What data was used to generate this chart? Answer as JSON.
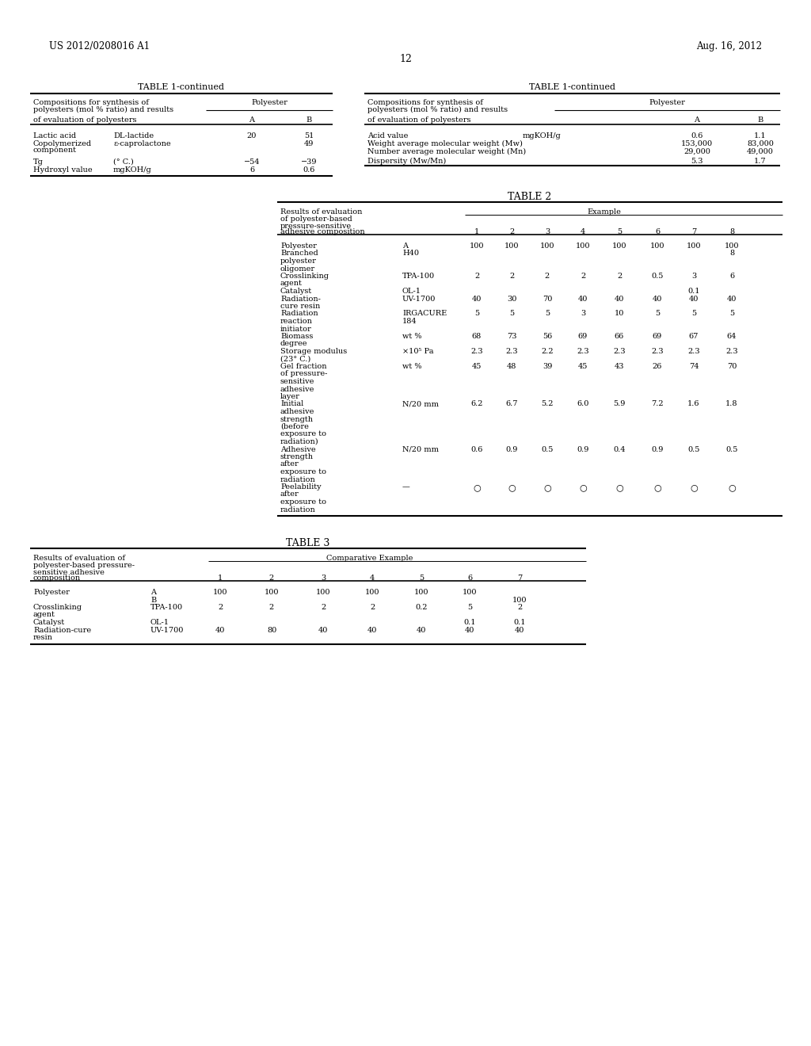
{
  "bg_color": "#ffffff",
  "header_left": "US 2012/0208016 A1",
  "header_right": "Aug. 16, 2012",
  "page_number": "12",
  "table1_left_title": "TABLE 1-continued",
  "table1_left_header1": "Compositions for synthesis of",
  "table1_left_header2": "polyesters (mol % ratio) and results",
  "table1_left_header3": "Polyester",
  "table1_left_subheader": "of evaluation of polyesters",
  "table1_left_rows": [
    [
      "Lactic acid",
      "DL-lactide",
      "20",
      "51"
    ],
    [
      "Copolymerized",
      "ε-caprolactone",
      "",
      "49"
    ],
    [
      "component",
      "",
      "",
      ""
    ],
    [
      "Tg",
      "(° C.)",
      "−54",
      "−39"
    ],
    [
      "Hydroxyl value",
      "mgKOH/g",
      "6",
      "0.6"
    ]
  ],
  "table1_right_title": "TABLE 1-continued",
  "table1_right_header1": "Compositions for synthesis of",
  "table1_right_header2": "polyesters (mol % ratio) and results",
  "table1_right_header3": "Polyester",
  "table1_right_subheader": "of evaluation of polyesters",
  "table1_right_rows": [
    [
      "Acid value",
      "mgKOH/g",
      "0.6",
      "1.1"
    ],
    [
      "Weight average molecular weight (Mw)",
      "",
      "153,000",
      "83,000"
    ],
    [
      "Number average molecular weight (Mn)",
      "",
      "29,000",
      "49,000"
    ],
    [
      "Dispersity (Mw/Mn)",
      "",
      "5.3",
      "1.7"
    ]
  ],
  "table2_title": "TABLE 2",
  "table2_header1": "Results of evaluation",
  "table2_header2": "of polyester-based",
  "table2_header3": "pressure-sensitive",
  "table2_example_header": "Example",
  "table2_rows": [
    {
      "label": "Polyester",
      "sub": "A",
      "values": [
        "100",
        "100",
        "100",
        "100",
        "100",
        "100",
        "100",
        "100"
      ],
      "sub2": ""
    },
    {
      "label": "Branched",
      "sub": "H40",
      "values": [
        "",
        "",
        "",
        "",
        "",
        "",
        "",
        "8"
      ],
      "sub2": ""
    },
    {
      "label": "polyester",
      "sub": "",
      "values": [
        "",
        "",
        "",
        "",
        "",
        "",
        "",
        ""
      ],
      "sub2": ""
    },
    {
      "label": "oligomer",
      "sub": "",
      "values": [
        "",
        "",
        "",
        "",
        "",
        "",
        "",
        ""
      ],
      "sub2": ""
    },
    {
      "label": "Crosslinking",
      "sub": "TPA-100",
      "values": [
        "2",
        "2",
        "2",
        "2",
        "2",
        "0.5",
        "3",
        "6"
      ],
      "sub2": ""
    },
    {
      "label": "agent",
      "sub": "",
      "values": [
        "",
        "",
        "",
        "",
        "",
        "",
        "",
        ""
      ],
      "sub2": ""
    },
    {
      "label": "Catalyst",
      "sub": "OL-1",
      "values": [
        "",
        "",
        "",
        "",
        "",
        "",
        "0.1",
        ""
      ],
      "sub2": ""
    },
    {
      "label": "Radiation-",
      "sub": "UV-1700",
      "values": [
        "40",
        "30",
        "70",
        "40",
        "40",
        "40",
        "40",
        "40"
      ],
      "sub2": ""
    },
    {
      "label": "cure resin",
      "sub": "",
      "values": [
        "",
        "",
        "",
        "",
        "",
        "",
        "",
        ""
      ],
      "sub2": ""
    },
    {
      "label": "Radiation",
      "sub": "IRGACURE",
      "values": [
        "5",
        "5",
        "5",
        "3",
        "10",
        "5",
        "5",
        "5"
      ],
      "sub2": ""
    },
    {
      "label": "reaction",
      "sub": "184",
      "values": [
        "",
        "",
        "",
        "",
        "",
        "",
        "",
        ""
      ],
      "sub2": ""
    },
    {
      "label": "initiator",
      "sub": "",
      "values": [
        "",
        "",
        "",
        "",
        "",
        "",
        "",
        ""
      ],
      "sub2": ""
    },
    {
      "label": "Biomass",
      "sub": "wt %",
      "values": [
        "68",
        "73",
        "56",
        "69",
        "66",
        "69",
        "67",
        "64"
      ],
      "sub2": ""
    },
    {
      "label": "degree",
      "sub": "",
      "values": [
        "",
        "",
        "",
        "",
        "",
        "",
        "",
        ""
      ],
      "sub2": ""
    },
    {
      "label": "Storage modulus",
      "sub": "×10⁵ Pa",
      "values": [
        "2.3",
        "2.3",
        "2.2",
        "2.3",
        "2.3",
        "2.3",
        "2.3",
        "2.3"
      ],
      "sub2": ""
    },
    {
      "label": "(23° C.)",
      "sub": "",
      "values": [
        "",
        "",
        "",
        "",
        "",
        "",
        "",
        ""
      ],
      "sub2": ""
    },
    {
      "label": "Gel fraction",
      "sub": "wt %",
      "values": [
        "45",
        "48",
        "39",
        "45",
        "43",
        "26",
        "74",
        "70"
      ],
      "sub2": ""
    },
    {
      "label": "of pressure-",
      "sub": "",
      "values": [
        "",
        "",
        "",
        "",
        "",
        "",
        "",
        ""
      ],
      "sub2": ""
    },
    {
      "label": "sensitive",
      "sub": "",
      "values": [
        "",
        "",
        "",
        "",
        "",
        "",
        "",
        ""
      ],
      "sub2": ""
    },
    {
      "label": "adhesive",
      "sub": "",
      "values": [
        "",
        "",
        "",
        "",
        "",
        "",
        "",
        ""
      ],
      "sub2": ""
    },
    {
      "label": "layer",
      "sub": "",
      "values": [
        "",
        "",
        "",
        "",
        "",
        "",
        "",
        ""
      ],
      "sub2": ""
    },
    {
      "label": "Initial",
      "sub": "N/20 mm",
      "values": [
        "6.2",
        "6.7",
        "5.2",
        "6.0",
        "5.9",
        "7.2",
        "1.6",
        "1.8"
      ],
      "sub2": ""
    },
    {
      "label": "adhesive",
      "sub": "",
      "values": [
        "",
        "",
        "",
        "",
        "",
        "",
        "",
        ""
      ],
      "sub2": ""
    },
    {
      "label": "strength",
      "sub": "",
      "values": [
        "",
        "",
        "",
        "",
        "",
        "",
        "",
        ""
      ],
      "sub2": ""
    },
    {
      "label": "(before",
      "sub": "",
      "values": [
        "",
        "",
        "",
        "",
        "",
        "",
        "",
        ""
      ],
      "sub2": ""
    },
    {
      "label": "exposure to",
      "sub": "",
      "values": [
        "",
        "",
        "",
        "",
        "",
        "",
        "",
        ""
      ],
      "sub2": ""
    },
    {
      "label": "radiation)",
      "sub": "",
      "values": [
        "",
        "",
        "",
        "",
        "",
        "",
        "",
        ""
      ],
      "sub2": ""
    },
    {
      "label": "Adhesive",
      "sub": "N/20 mm",
      "values": [
        "0.6",
        "0.9",
        "0.5",
        "0.9",
        "0.4",
        "0.9",
        "0.5",
        "0.5"
      ],
      "sub2": ""
    },
    {
      "label": "strength",
      "sub": "",
      "values": [
        "",
        "",
        "",
        "",
        "",
        "",
        "",
        ""
      ],
      "sub2": ""
    },
    {
      "label": "after",
      "sub": "",
      "values": [
        "",
        "",
        "",
        "",
        "",
        "",
        "",
        ""
      ],
      "sub2": ""
    },
    {
      "label": "exposure to",
      "sub": "",
      "values": [
        "",
        "",
        "",
        "",
        "",
        "",
        "",
        ""
      ],
      "sub2": ""
    },
    {
      "label": "radiation",
      "sub": "",
      "values": [
        "",
        "",
        "",
        "",
        "",
        "",
        "",
        ""
      ],
      "sub2": ""
    },
    {
      "label": "Peelability",
      "sub": "—",
      "values": [
        "○",
        "○",
        "○",
        "○",
        "○",
        "○",
        "○",
        "○"
      ],
      "sub2": ""
    },
    {
      "label": "after",
      "sub": "",
      "values": [
        "",
        "",
        "",
        "",
        "",
        "",
        "",
        ""
      ],
      "sub2": ""
    },
    {
      "label": "exposure to",
      "sub": "",
      "values": [
        "",
        "",
        "",
        "",
        "",
        "",
        "",
        ""
      ],
      "sub2": ""
    },
    {
      "label": "radiation",
      "sub": "",
      "values": [
        "",
        "",
        "",
        "",
        "",
        "",
        "",
        ""
      ],
      "sub2": ""
    }
  ],
  "table3_title": "TABLE 3",
  "table3_header1": "Results of evaluation of",
  "table3_header2": "polyester-based pressure-",
  "table3_header3": "sensitive adhesive",
  "table3_example_header": "Comparative Example",
  "table3_rows": [
    {
      "label": "Polyester",
      "sub": "A",
      "values": [
        "100",
        "100",
        "100",
        "100",
        "100",
        "100",
        ""
      ]
    },
    {
      "label": "",
      "sub": "B",
      "values": [
        "",
        "",
        "",
        "",
        "",
        "",
        "100"
      ]
    },
    {
      "label": "Crosslinking",
      "sub": "TPA-100",
      "values": [
        "2",
        "2",
        "2",
        "2",
        "0.2",
        "5",
        "2"
      ]
    },
    {
      "label": "agent",
      "sub": "",
      "values": [
        "",
        "",
        "",
        "",
        "",
        "",
        ""
      ]
    },
    {
      "label": "Catalyst",
      "sub": "OL-1",
      "values": [
        "",
        "",
        "",
        "",
        "",
        "0.1",
        "0.1"
      ]
    },
    {
      "label": "Radiation-cure",
      "sub": "UV-1700",
      "values": [
        "40",
        "80",
        "40",
        "40",
        "40",
        "40",
        "40"
      ]
    },
    {
      "label": "resin",
      "sub": "",
      "values": [
        "",
        "",
        "",
        "",
        "",
        "",
        ""
      ]
    }
  ]
}
